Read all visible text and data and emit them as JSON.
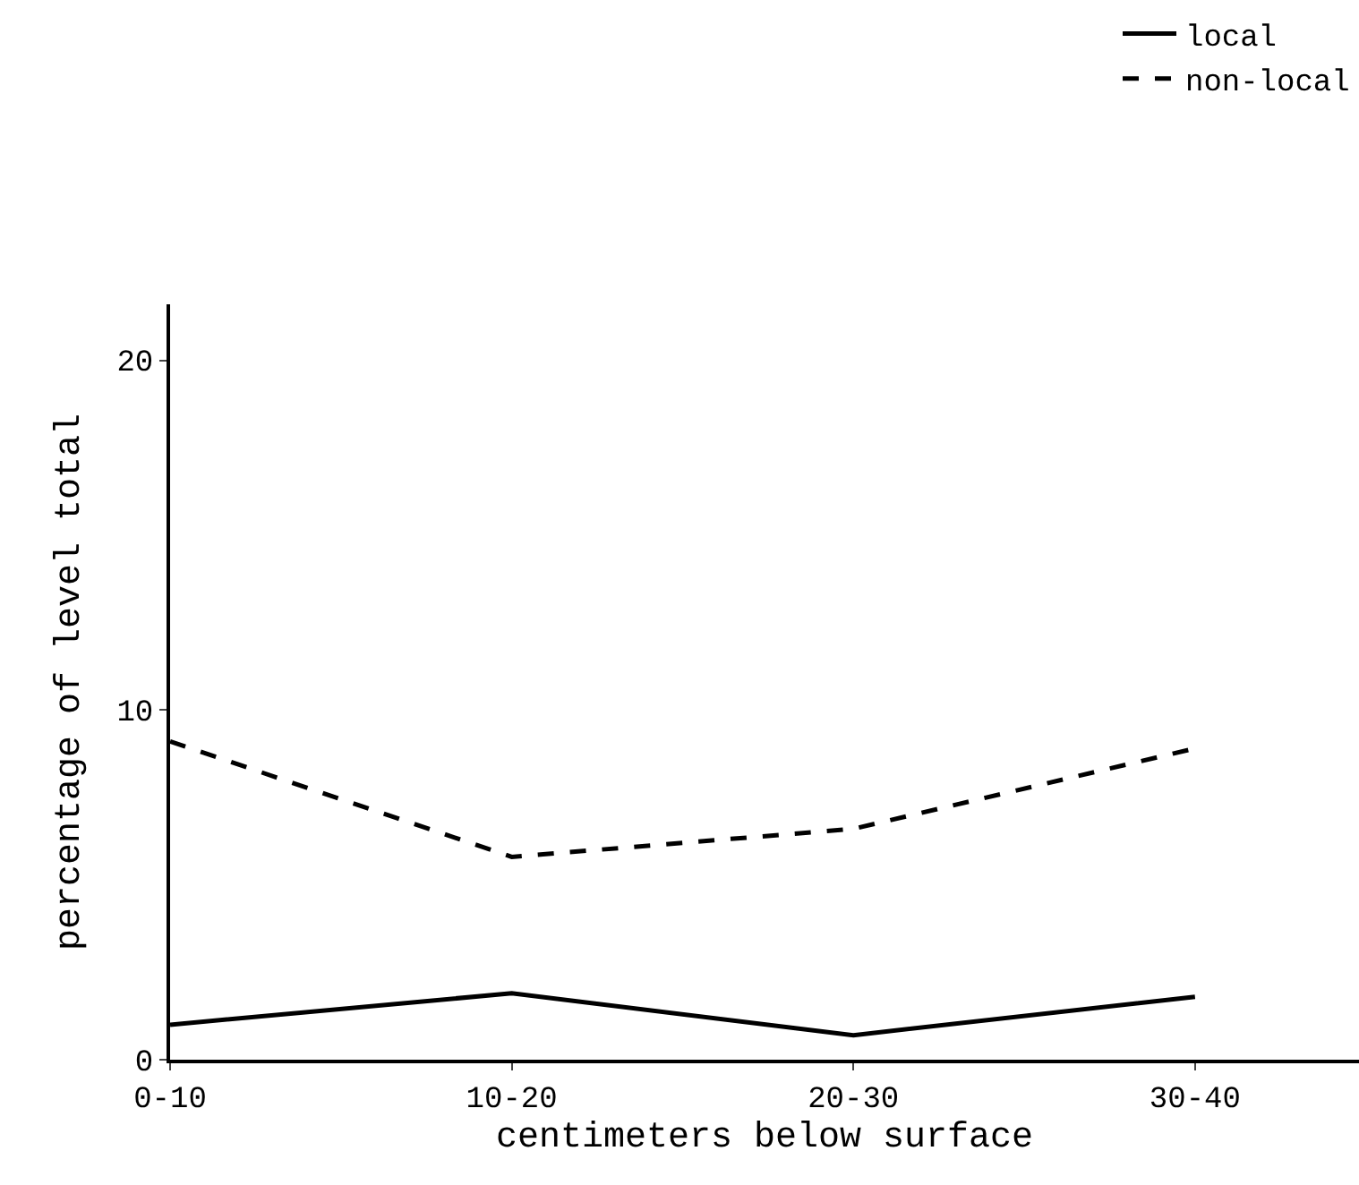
{
  "chart_data": {
    "type": "line",
    "xlabel": "centimeters below surface",
    "ylabel": "percentage of level total",
    "categories": [
      "0-10",
      "10-20",
      "20-30",
      "30-40"
    ],
    "series": [
      {
        "name": "local",
        "color": "#000000",
        "line_style": "solid",
        "values": [
          1.0,
          1.9,
          0.7,
          1.8
        ]
      },
      {
        "name": "non-local",
        "color": "#000000",
        "line_style": "dashed",
        "values": [
          9.1,
          5.8,
          6.6,
          8.9
        ]
      }
    ],
    "ylim": [
      0,
      21.6
    ],
    "yticks": [
      0,
      10,
      20
    ],
    "legend": "top right",
    "marker": "none"
  }
}
